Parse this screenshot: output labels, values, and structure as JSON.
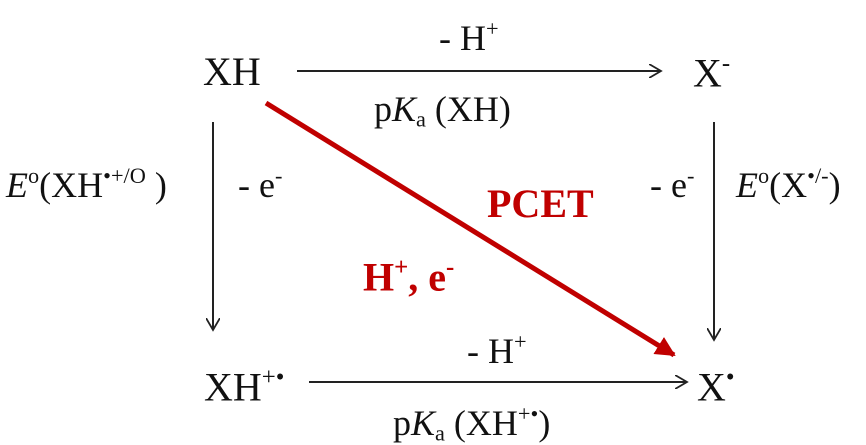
{
  "species": {
    "xh": "XH",
    "x_minus_base": "X",
    "x_minus_charge": "-",
    "xh_radcat_base": "XH",
    "xh_radcat_charge": "+•",
    "x_rad_base": "X",
    "x_rad_charge": "•"
  },
  "top_arrow": {
    "label_base": "- H",
    "label_charge": "+",
    "pka_p": "p",
    "pka_K": "K",
    "pka_sub": "a",
    "pka_arg": "(XH)"
  },
  "bottom_arrow": {
    "label_base": "- H",
    "label_charge": "+",
    "pka_p": "p",
    "pka_K": "K",
    "pka_sub": "a",
    "pka_arg_open": "(XH",
    "pka_arg_charge": "+•",
    "pka_arg_close": ")"
  },
  "left_arrow": {
    "e_label_base": "- e",
    "e_label_charge": "-",
    "potential_E": "E",
    "potential_deg": "o",
    "potential_open": "(XH",
    "potential_sup": "•+/O",
    "potential_close": " )"
  },
  "right_arrow": {
    "e_label_base": "- e",
    "e_label_charge": "-",
    "potential_E": "E",
    "potential_deg": "o",
    "potential_open": "(X",
    "potential_sup": "•/-",
    "potential_close": ")"
  },
  "diagonal": {
    "pcet_label": "PCET",
    "hplus_base": "H",
    "hplus_charge": "+",
    "sep": ", e",
    "e_charge": "-"
  },
  "colors": {
    "pcet_arrow": "#c00000",
    "arrow": "#222222",
    "text": "#111111"
  }
}
